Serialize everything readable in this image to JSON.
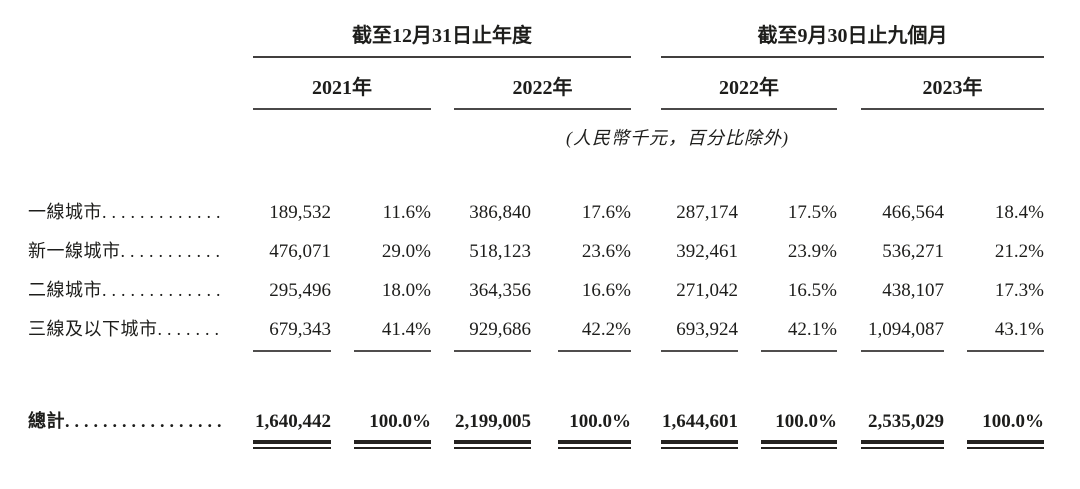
{
  "table": {
    "groups": [
      {
        "title": "截至12月31日止年度",
        "years": [
          "2021年",
          "2022年"
        ]
      },
      {
        "title": "截至9月30日止九個月",
        "years": [
          "2022年",
          "2023年"
        ]
      }
    ],
    "note": "(人民幣千元，百分比除外)",
    "rows": [
      {
        "label": "一線城市",
        "leader": "..............",
        "values": [
          "189,532",
          "11.6%",
          "386,840",
          "17.6%",
          "287,174",
          "17.5%",
          "466,564",
          "18.4%"
        ]
      },
      {
        "label": "新一線城市",
        "leader": "............",
        "values": [
          "476,071",
          "29.0%",
          "518,123",
          "23.6%",
          "392,461",
          "23.9%",
          "536,271",
          "21.2%"
        ]
      },
      {
        "label": "二線城市",
        "leader": "..............",
        "values": [
          "295,496",
          "18.0%",
          "364,356",
          "16.6%",
          "271,042",
          "16.5%",
          "438,107",
          "17.3%"
        ]
      },
      {
        "label": "三線及以下城市",
        "leader": ".......",
        "values": [
          "679,343",
          "41.4%",
          "929,686",
          "42.2%",
          "693,924",
          "42.1%",
          "1,094,087",
          "43.1%"
        ]
      }
    ],
    "total": {
      "label": "總計",
      "leader": "..................",
      "values": [
        "1,640,442",
        "100.0%",
        "2,199,005",
        "100.0%",
        "1,644,601",
        "100.0%",
        "2,535,029",
        "100.0%"
      ]
    }
  }
}
